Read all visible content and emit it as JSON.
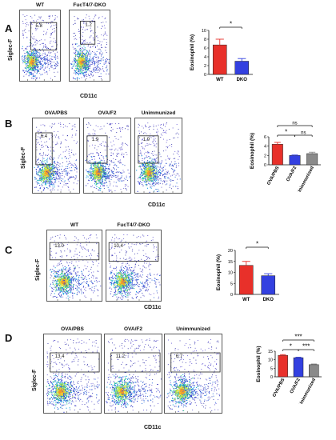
{
  "panels": [
    {
      "letter": "A",
      "facs_titles": [
        "WT",
        "FucT4/7-DKO"
      ],
      "gate_values": [
        "5.8",
        "1.2"
      ],
      "ylabel": "Siglec-F",
      "xlabel": "CD11c"
    },
    {
      "letter": "B",
      "facs_titles": [
        "OVA/PBS",
        "OVA/F2",
        "Unimmunized"
      ],
      "gate_values": [
        "6.4",
        "1.9",
        "1.9"
      ],
      "ylabel": "Siglec-F",
      "xlabel": "CD11c"
    },
    {
      "letter": "C",
      "facs_titles": [
        "WT",
        "FucT4/7-DKO"
      ],
      "gate_values": [
        "13.0",
        "10.4"
      ],
      "ylabel": "Siglec-F",
      "xlabel": "CD11c"
    },
    {
      "letter": "D",
      "facs_titles": [
        "OVA/PBS",
        "OVA/F2",
        "Unimmunized"
      ],
      "gate_values": [
        "13.4",
        "11.2",
        "6.7"
      ],
      "ylabel": "Siglec-F",
      "xlabel": "CD11c"
    }
  ],
  "chart_data": [
    {
      "type": "bar",
      "categories": [
        "WT",
        "DKO"
      ],
      "values": [
        6.7,
        3.0
      ],
      "errors": [
        1.3,
        0.6
      ],
      "colors": [
        "#e8302a",
        "#3340e0"
      ],
      "ylabel": "Eosinophil (%)",
      "ylim": [
        0,
        10
      ],
      "yticks": [
        "0",
        "2",
        "4",
        "6",
        "8",
        "10"
      ],
      "significance": [
        {
          "a": 0,
          "b": 1,
          "label": "*"
        }
      ],
      "xlabel_rotated": false
    },
    {
      "type": "bar",
      "categories": [
        "OVA/PBS",
        "OVA/F2",
        "Unimmunized"
      ],
      "values": [
        4.4,
        2.0,
        2.4
      ],
      "errors": [
        0.4,
        0.1,
        0.3
      ],
      "colors": [
        "#e8302a",
        "#3340e0",
        "#8a8a8a"
      ],
      "ylabel": "Eosinophil (%)",
      "ylim": [
        0,
        6
      ],
      "yticks": [
        "0",
        "2",
        "4",
        "6"
      ],
      "significance": [
        {
          "a": 0,
          "b": 1,
          "label": "*"
        },
        {
          "a": 1,
          "b": 2,
          "label": "ns"
        },
        {
          "a": 0,
          "b": 2,
          "label": "ns"
        }
      ],
      "xlabel_rotated": true
    },
    {
      "type": "bar",
      "categories": [
        "WT",
        "DKO"
      ],
      "values": [
        13.2,
        8.5
      ],
      "errors": [
        1.8,
        0.9
      ],
      "colors": [
        "#e8302a",
        "#3340e0"
      ],
      "ylabel": "Eosinophil (%)",
      "ylim": [
        0,
        20
      ],
      "yticks": [
        "0",
        "5",
        "10",
        "15",
        "20"
      ],
      "significance": [
        {
          "a": 0,
          "b": 1,
          "label": "*"
        }
      ],
      "xlabel_rotated": false
    },
    {
      "type": "bar",
      "categories": [
        "OVA/PBS",
        "OVA/F2",
        "Unimmunized"
      ],
      "values": [
        12.6,
        11.2,
        7.1
      ],
      "errors": [
        0.4,
        0.3,
        0.4
      ],
      "colors": [
        "#e8302a",
        "#3340e0",
        "#8a8a8a"
      ],
      "ylabel": "Eosinophil (%)",
      "ylim": [
        0,
        15
      ],
      "yticks": [
        "0",
        "5",
        "10",
        "15"
      ],
      "significance": [
        {
          "a": 0,
          "b": 1,
          "label": "*"
        },
        {
          "a": 1,
          "b": 2,
          "label": "***"
        },
        {
          "a": 0,
          "b": 2,
          "label": "***"
        }
      ],
      "xlabel_rotated": true
    }
  ]
}
